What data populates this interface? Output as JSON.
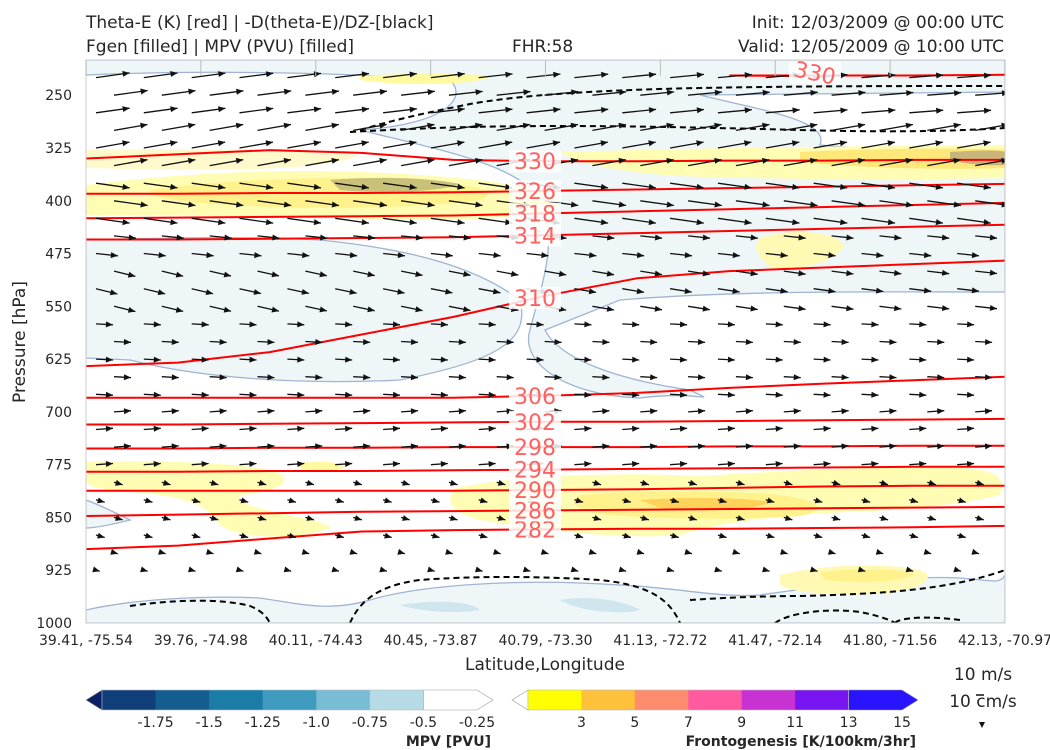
{
  "header": {
    "title_line1": "Theta-E (K) [red] | -D(theta-E)/DZ-[black]",
    "title_line2": "Fgen [filled] | MPV (PVU) [filled]",
    "fhr": "FHR:58",
    "init": "Init: 12/03/2009 @ 00:00 UTC",
    "valid": "Valid: 12/05/2009 @ 10:00 UTC"
  },
  "chart_data": {
    "type": "cross-section",
    "xlabel": "Latitude,Longitude",
    "ylabel": "Pressure [hPa]",
    "x_ticks": [
      "39.41, -75.54",
      "39.76, -74.98",
      "40.11, -74.43",
      "40.45, -73.87",
      "40.79, -73.30",
      "41.13, -72.72",
      "41.47, -72.14",
      "41.80, -71.56",
      "42.13, -70.97"
    ],
    "y_ticks": [
      250,
      325,
      400,
      475,
      550,
      625,
      700,
      775,
      850,
      925,
      1000
    ],
    "ylim": [
      1000,
      200
    ],
    "theta_e_contours": [
      {
        "label": "282",
        "y": [
          895,
          890,
          880,
          870,
          868,
          867,
          866,
          866,
          865,
          864,
          862
        ]
      },
      {
        "label": "286",
        "y": [
          848,
          846,
          844,
          842,
          841,
          840,
          839,
          838,
          837,
          836,
          835
        ]
      },
      {
        "label": "290",
        "y": [
          812,
          812,
          812,
          812,
          812,
          811,
          810,
          808,
          806,
          805,
          805
        ]
      },
      {
        "label": "294",
        "y": [
          785,
          785,
          784,
          784,
          783,
          782,
          781,
          780,
          779,
          778,
          778
        ]
      },
      {
        "label": "298",
        "y": [
          752,
          752,
          751,
          751,
          750,
          750,
          750,
          749,
          749,
          748,
          748
        ]
      },
      {
        "label": "302",
        "y": [
          718,
          718,
          717,
          716,
          715,
          714,
          714,
          713,
          712,
          711,
          710
        ]
      },
      {
        "label": "306",
        "y": [
          680,
          680,
          680,
          680,
          680,
          677,
          673,
          666,
          660,
          655,
          650
        ]
      },
      {
        "label": "310",
        "y": [
          635,
          630,
          615,
          590,
          565,
          535,
          510,
          500,
          495,
          490,
          485
        ]
      },
      {
        "label": "314",
        "y": [
          455,
          455,
          454,
          453,
          452,
          449,
          446,
          443,
          440,
          437,
          434
        ]
      },
      {
        "label": "318",
        "y": [
          425,
          424,
          423,
          422,
          421,
          418,
          415,
          412,
          409,
          406,
          403
        ]
      },
      {
        "label": "326",
        "y": [
          390,
          390,
          389,
          389,
          388,
          386,
          384,
          382,
          380,
          378,
          376
        ]
      },
      {
        "label": "330",
        "y": [
          340,
          334,
          328,
          332,
          342,
          344,
          344,
          343,
          343,
          342,
          342
        ]
      },
      {
        "label": "330",
        "y": [
          null,
          null,
          null,
          null,
          null,
          null,
          null,
          222,
          222,
          222,
          221
        ]
      }
    ],
    "mpv_colorbar": {
      "title": "MPV [PVU]",
      "ticks": [
        "-1.75",
        "-1.5",
        "-1.25",
        "-1.0",
        "-0.75",
        "-0.5",
        "-0.25"
      ],
      "colors": [
        "#0a1f66",
        "#0f3e7a",
        "#145d91",
        "#1b7ca8",
        "#3f9cc0",
        "#79bdd4",
        "#b6dbe6",
        "#ffffff"
      ]
    },
    "fgen_colorbar": {
      "title": "Frontogenesis [K/100km/3hr]",
      "ticks": [
        "3",
        "5",
        "7",
        "9",
        "11",
        "13",
        "15"
      ],
      "colors": [
        "#ffffff",
        "#ffff00",
        "#ffc03c",
        "#ff8c6e",
        "#ff5aa0",
        "#c832d2",
        "#7814f0",
        "#2814ff"
      ]
    },
    "wind_reference": {
      "line1": "10 m/s",
      "line2": "10 cm/s"
    }
  },
  "colors": {
    "theta_e": "#ff0000",
    "contour_label": "#ff6060",
    "stability": "#000000",
    "mpv_line": "#a0b4d2"
  }
}
